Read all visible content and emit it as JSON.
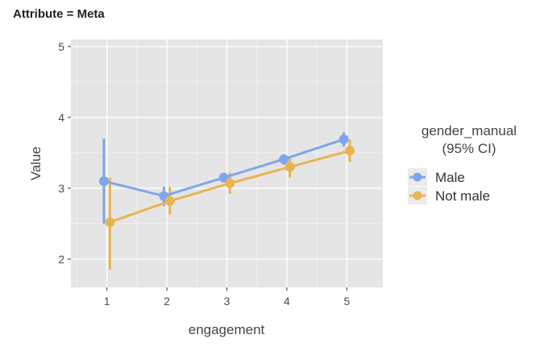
{
  "facet_title": "Attribute = Meta",
  "chart_data": {
    "type": "line",
    "title": "",
    "xlabel": "engagement",
    "ylabel": "Value",
    "x": [
      1,
      2,
      3,
      4,
      5
    ],
    "x_ticks": [
      "1",
      "2",
      "3",
      "4",
      "5"
    ],
    "y_ticks": [
      "2",
      "3",
      "4",
      "5"
    ],
    "xlim": [
      0.4,
      5.6
    ],
    "ylim": [
      1.6,
      5.1
    ],
    "grid": true,
    "legend_position": "right",
    "legend_title_lines": [
      "gender_manual",
      "(95% CI)"
    ],
    "error_bars": "95% CI",
    "series": [
      {
        "name": "Male",
        "color": "#7fa6eb",
        "values": [
          3.1,
          2.89,
          3.15,
          3.41,
          3.69
        ],
        "ci_low": [
          2.5,
          2.75,
          3.08,
          3.33,
          3.59
        ],
        "ci_high": [
          3.7,
          3.02,
          3.22,
          3.48,
          3.79
        ]
      },
      {
        "name": "Not male",
        "color": "#e8b452",
        "values": [
          2.52,
          2.82,
          3.07,
          3.3,
          3.53
        ],
        "ci_low": [
          1.85,
          2.63,
          2.92,
          3.15,
          3.37
        ],
        "ci_high": [
          3.15,
          3.02,
          3.22,
          3.45,
          3.69
        ]
      }
    ]
  }
}
